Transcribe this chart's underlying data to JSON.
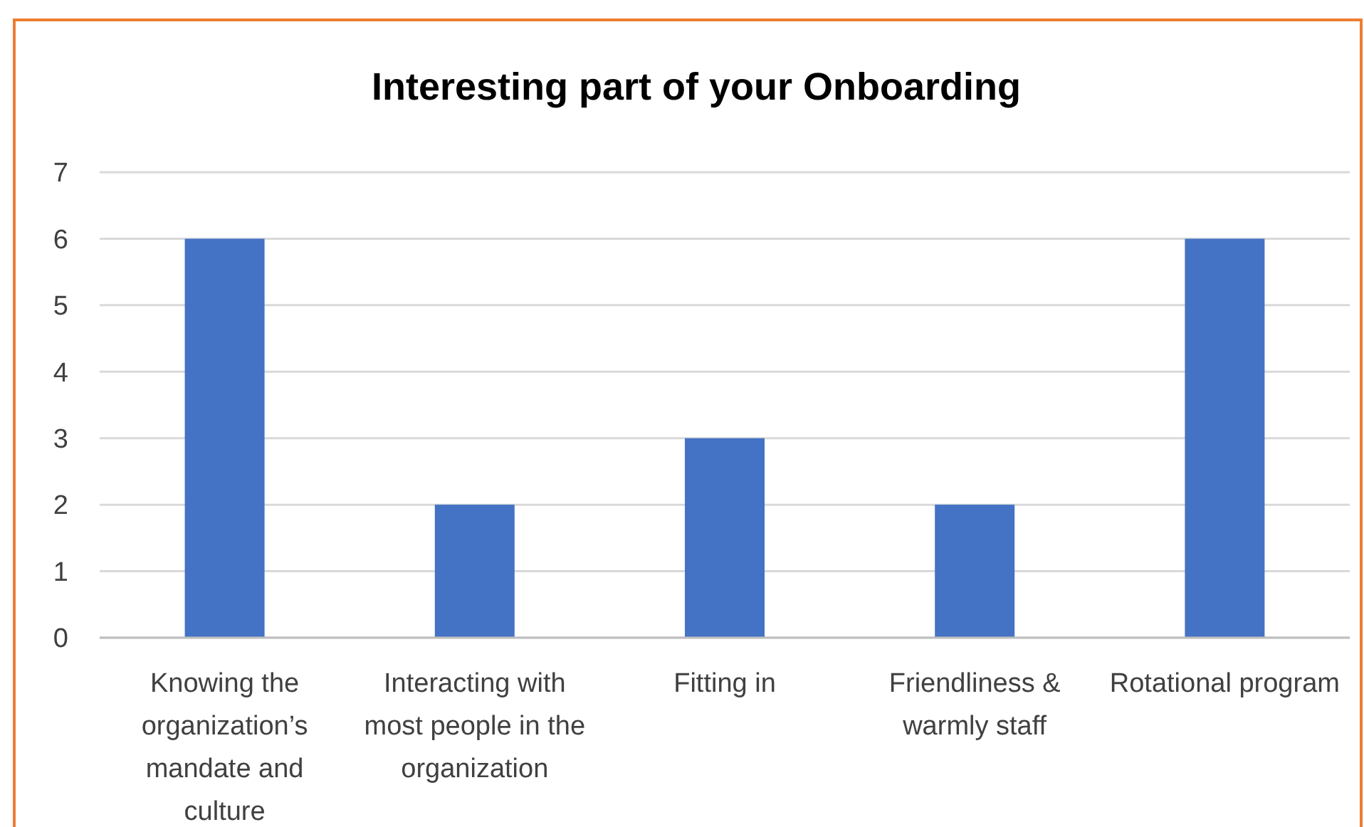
{
  "chart_data": {
    "type": "bar",
    "title": "Interesting part of your Onboarding",
    "categories": [
      "Knowing the organization’s mandate and culture",
      "Interacting with most people in the organization",
      "Fitting in",
      "Friendliness & warmly staff",
      "Rotational program"
    ],
    "values": [
      6,
      2,
      3,
      2,
      6
    ],
    "color": "#4472c4",
    "ylim": [
      0,
      7
    ],
    "yticks": [
      0,
      1,
      2,
      3,
      4,
      5,
      6,
      7
    ],
    "grid": "y"
  }
}
